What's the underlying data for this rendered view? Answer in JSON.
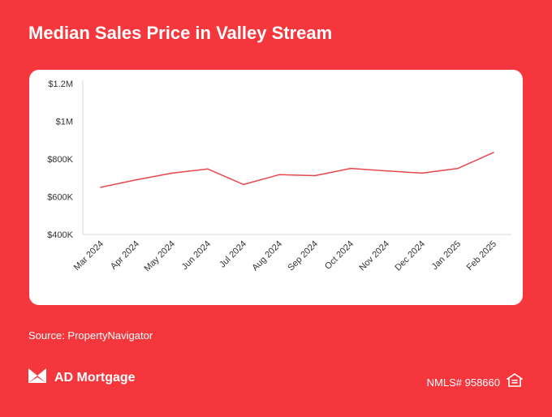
{
  "header": {
    "title": "Median Sales Price in Valley Stream"
  },
  "chart_data": {
    "type": "line",
    "title": "Median Sales Price in Valley Stream",
    "xlabel": "",
    "ylabel": "",
    "categories": [
      "Mar 2024",
      "Apr 2024",
      "May 2024",
      "Jun 2024",
      "Jul 2024",
      "Aug 2024",
      "Sep 2024",
      "Oct 2024",
      "Nov 2024",
      "Dec 2024",
      "Jan 2025",
      "Feb 2025"
    ],
    "series": [
      {
        "values": [
          650000,
          690000,
          725000,
          747000,
          665000,
          717000,
          712000,
          750000,
          737000,
          725000,
          750000,
          835000
        ]
      }
    ],
    "ylim": [
      400000,
      1200000
    ],
    "yticks": [
      400000,
      600000,
      800000,
      1000000,
      1200000
    ],
    "ytick_labels": [
      "$400K",
      "$600K",
      "$800K",
      "$1M",
      "$1.2M"
    ],
    "grid": false,
    "line_color": "#e8474b"
  },
  "footer": {
    "source": "Source: PropertyNavigator",
    "brand": "AD Mortgage",
    "nmls": "NMLS# 958660"
  },
  "icons": {
    "logo": "ad-mortgage-logo-icon",
    "housing": "equal-housing-icon"
  },
  "colors": {
    "background": "#f5373d",
    "card": "#ffffff",
    "line": "#e8474b"
  }
}
